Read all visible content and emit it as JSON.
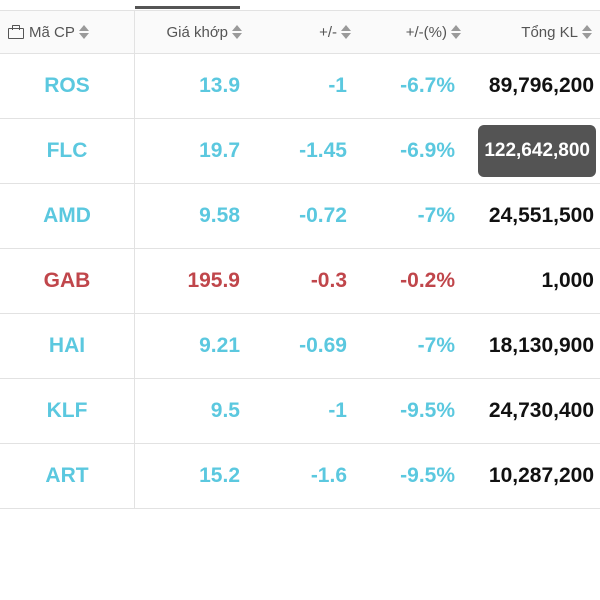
{
  "header": {
    "symbol_label": "Mã CP",
    "price_label": "Giá khớp",
    "change_label": "+/-",
    "change_pct_label": "+/-(%)",
    "volume_label": "Tổng KL"
  },
  "colors": {
    "down": "#5bc8df",
    "ref": "#c0464b",
    "volume": "#111111",
    "highlight_bg": "#545454"
  },
  "icons": {
    "portfolio": "briefcase-icon",
    "sort": "sort-icon"
  },
  "rows": [
    {
      "symbol": "ROS",
      "price": "13.9",
      "change": "-1",
      "change_pct": "-6.7%",
      "volume": "89,796,200",
      "status": "down",
      "highlight": false
    },
    {
      "symbol": "FLC",
      "price": "19.7",
      "change": "-1.45",
      "change_pct": "-6.9%",
      "volume": "122,642,800",
      "status": "down",
      "highlight": true
    },
    {
      "symbol": "AMD",
      "price": "9.58",
      "change": "-0.72",
      "change_pct": "-7%",
      "volume": "24,551,500",
      "status": "down",
      "highlight": false
    },
    {
      "symbol": "GAB",
      "price": "195.9",
      "change": "-0.3",
      "change_pct": "-0.2%",
      "volume": "1,000",
      "status": "ref",
      "highlight": false
    },
    {
      "symbol": "HAI",
      "price": "9.21",
      "change": "-0.69",
      "change_pct": "-7%",
      "volume": "18,130,900",
      "status": "down",
      "highlight": false
    },
    {
      "symbol": "KLF",
      "price": "9.5",
      "change": "-1",
      "change_pct": "-9.5%",
      "volume": "24,730,400",
      "status": "down",
      "highlight": false
    },
    {
      "symbol": "ART",
      "price": "15.2",
      "change": "-1.6",
      "change_pct": "-9.5%",
      "volume": "10,287,200",
      "status": "down",
      "highlight": false
    }
  ]
}
